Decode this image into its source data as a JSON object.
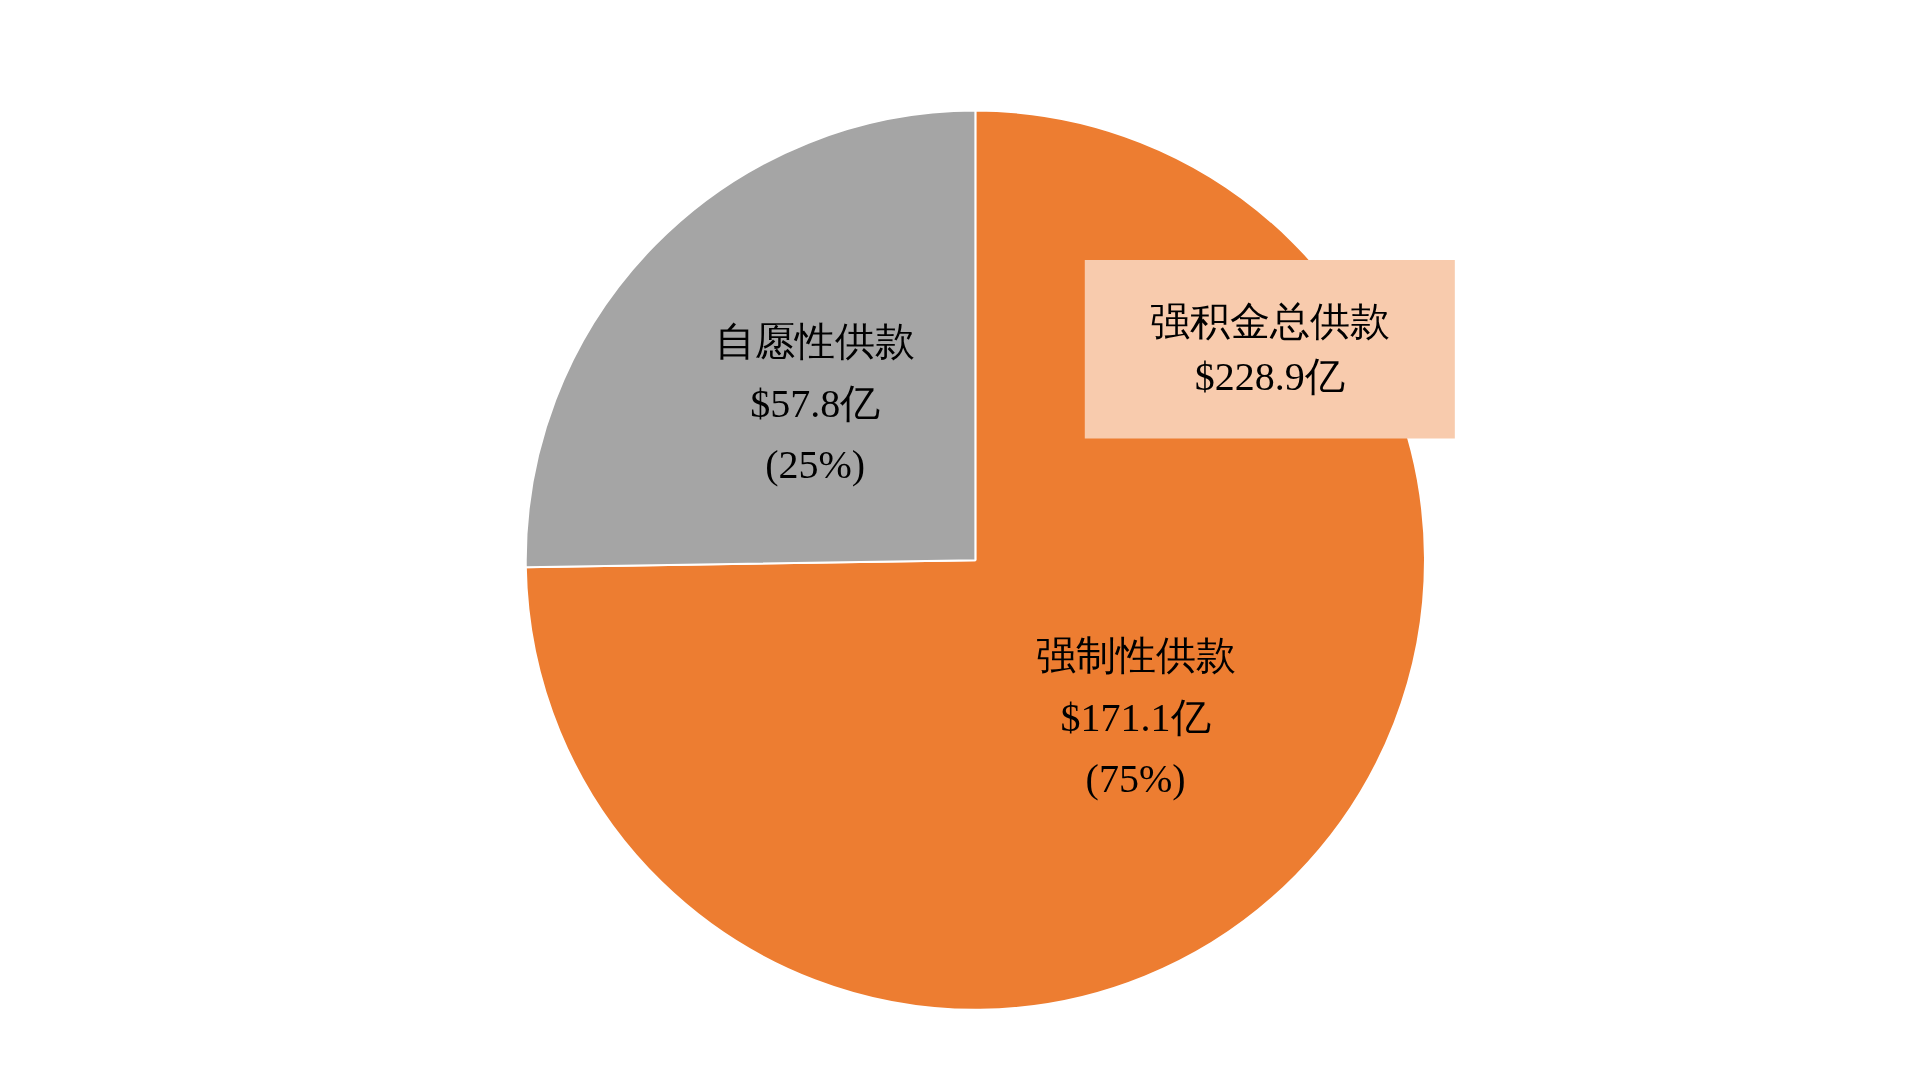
{
  "chart_data": {
    "type": "pie",
    "categories": [
      "强制性供款",
      "自愿性供款"
    ],
    "values": [
      171.1,
      57.8
    ],
    "colors": [
      "#ed7d31",
      "#a5a5a5"
    ],
    "value_labels": [
      "$171.1亿\n(75%)",
      "$57.8亿\n(25%)"
    ],
    "annotations": [
      "强积金总供款\n$228.9亿"
    ]
  }
}
